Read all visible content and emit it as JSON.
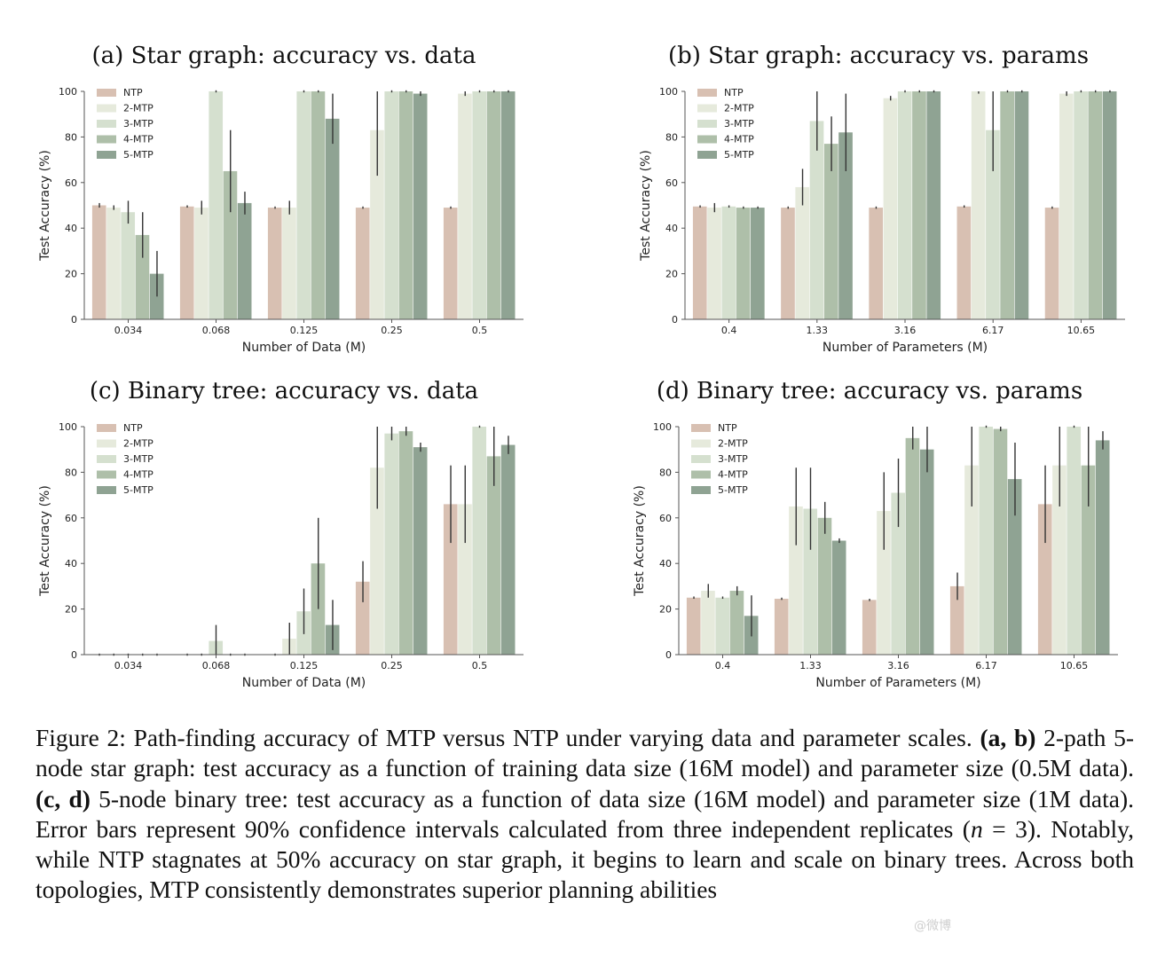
{
  "colors": {
    "NTP": "#d8c0b2",
    "2-MTP": "#e6eadc",
    "3-MTP": "#d5e0cf",
    "4-MTP": "#aebfa9",
    "5-MTP": "#8fa393"
  },
  "chart_data": [
    {
      "type": "bar",
      "title": "(a) Star graph: accuracy vs. data",
      "xlabel": "Number of Data (M)",
      "ylabel": "Test Accuracy (%)",
      "ylim": [
        0,
        100
      ],
      "yticks": [
        "0",
        "20",
        "40",
        "60",
        "80",
        "100"
      ],
      "categories": [
        "0.034",
        "0.068",
        "0.125",
        "0.25",
        "0.5"
      ],
      "legend": "top-left",
      "series": [
        {
          "name": "NTP",
          "values": [
            50,
            49.5,
            49,
            49,
            49
          ],
          "err": [
            1,
            0.5,
            0.5,
            0.5,
            0.5
          ]
        },
        {
          "name": "2-MTP",
          "values": [
            49,
            49,
            49,
            83,
            99
          ],
          "err": [
            1,
            3,
            3,
            20,
            1
          ]
        },
        {
          "name": "3-MTP",
          "values": [
            47,
            100,
            100,
            100,
            100
          ],
          "err": [
            5,
            0,
            0,
            0,
            0
          ]
        },
        {
          "name": "4-MTP",
          "values": [
            37,
            65,
            100,
            100,
            100
          ],
          "err": [
            10,
            18,
            0,
            0,
            0
          ]
        },
        {
          "name": "5-MTP",
          "values": [
            20,
            51,
            88,
            99,
            100
          ],
          "err": [
            10,
            5,
            11,
            1,
            0
          ]
        }
      ]
    },
    {
      "type": "bar",
      "title": "(b) Star graph: accuracy vs. params",
      "xlabel": "Number of Parameters (M)",
      "ylabel": "Test Accuracy (%)",
      "ylim": [
        0,
        100
      ],
      "yticks": [
        "0",
        "20",
        "40",
        "60",
        "80",
        "100"
      ],
      "categories": [
        "0.4",
        "1.33",
        "3.16",
        "6.17",
        "10.65"
      ],
      "legend": "top-left",
      "series": [
        {
          "name": "NTP",
          "values": [
            49.5,
            49,
            49,
            49.5,
            49
          ],
          "err": [
            0.5,
            0.5,
            0.5,
            0.5,
            0.5
          ]
        },
        {
          "name": "2-MTP",
          "values": [
            49,
            58,
            97,
            100,
            99
          ],
          "err": [
            2,
            8,
            1,
            1,
            1
          ]
        },
        {
          "name": "3-MTP",
          "values": [
            49.5,
            87,
            100,
            83,
            100
          ],
          "err": [
            0.5,
            13,
            0,
            18,
            0
          ]
        },
        {
          "name": "4-MTP",
          "values": [
            49,
            77,
            100,
            100,
            100
          ],
          "err": [
            0.5,
            12,
            0,
            0,
            0
          ]
        },
        {
          "name": "5-MTP",
          "values": [
            49,
            82,
            100,
            100,
            100
          ],
          "err": [
            0.5,
            17,
            0,
            0,
            0
          ]
        }
      ]
    },
    {
      "type": "bar",
      "title": "(c) Binary tree: accuracy vs. data",
      "xlabel": "Number of Data (M)",
      "ylabel": "Test Accuracy (%)",
      "ylim": [
        0,
        100
      ],
      "yticks": [
        "0",
        "20",
        "40",
        "60",
        "80",
        "100"
      ],
      "categories": [
        "0.034",
        "0.068",
        "0.125",
        "0.25",
        "0.5"
      ],
      "legend": "top-left",
      "series": [
        {
          "name": "NTP",
          "values": [
            0,
            0,
            0,
            32,
            66
          ],
          "err": [
            0,
            0,
            0,
            9,
            17
          ]
        },
        {
          "name": "2-MTP",
          "values": [
            0,
            0,
            7,
            82,
            66
          ],
          "err": [
            0,
            0,
            7,
            18,
            17
          ]
        },
        {
          "name": "3-MTP",
          "values": [
            0,
            6,
            19,
            97,
            100
          ],
          "err": [
            0,
            7,
            10,
            3,
            0
          ]
        },
        {
          "name": "4-MTP",
          "values": [
            0,
            0,
            40,
            98,
            87
          ],
          "err": [
            0,
            0,
            20,
            2,
            13
          ]
        },
        {
          "name": "5-MTP",
          "values": [
            0,
            0,
            13,
            91,
            92
          ],
          "err": [
            0,
            0,
            11,
            2,
            4
          ]
        }
      ]
    },
    {
      "type": "bar",
      "title": "(d) Binary tree: accuracy vs. params",
      "xlabel": "Number of Parameters (M)",
      "ylabel": "Test Accuracy (%)",
      "ylim": [
        0,
        100
      ],
      "yticks": [
        "0",
        "20",
        "40",
        "60",
        "80",
        "100"
      ],
      "categories": [
        "0.4",
        "1.33",
        "3.16",
        "6.17",
        "10.65"
      ],
      "legend": "top-left",
      "series": [
        {
          "name": "NTP",
          "values": [
            25,
            24.5,
            24,
            30,
            66
          ],
          "err": [
            0.5,
            0.5,
            0.5,
            6,
            17
          ]
        },
        {
          "name": "2-MTP",
          "values": [
            28,
            65,
            63,
            83,
            83
          ],
          "err": [
            3,
            17,
            17,
            18,
            18
          ]
        },
        {
          "name": "3-MTP",
          "values": [
            25,
            64,
            71,
            100,
            100
          ],
          "err": [
            0.5,
            18,
            15,
            0,
            0
          ]
        },
        {
          "name": "4-MTP",
          "values": [
            28,
            60,
            95,
            99,
            83
          ],
          "err": [
            2,
            7,
            5,
            1,
            18
          ]
        },
        {
          "name": "5-MTP",
          "values": [
            17,
            50,
            90,
            77,
            94
          ],
          "err": [
            9,
            1,
            10,
            16,
            4
          ]
        }
      ]
    }
  ],
  "caption": {
    "part1": "Figure 2: Path-finding accuracy of MTP versus NTP under varying data and parameter scales. ",
    "bold_ab": "(a, b)",
    "part2": " 2-path 5-node star graph: test accuracy as a function of training data size (16M model) and parameter size (0.5M data). ",
    "bold_cd": "(c, d)",
    "part3": " 5-node binary tree: test accuracy as a function of data size (16M model) and parameter size (1M data). Error bars represent 90% confidence intervals calculated from three independent replicates (",
    "math": "n",
    "part4": " = 3). Notably, while NTP stagnates at 50% accuracy on star graph, it begins to learn and scale on binary trees. Across both topologies, MTP consistently demonstrates superior planning abilities"
  },
  "watermark": "@微博"
}
